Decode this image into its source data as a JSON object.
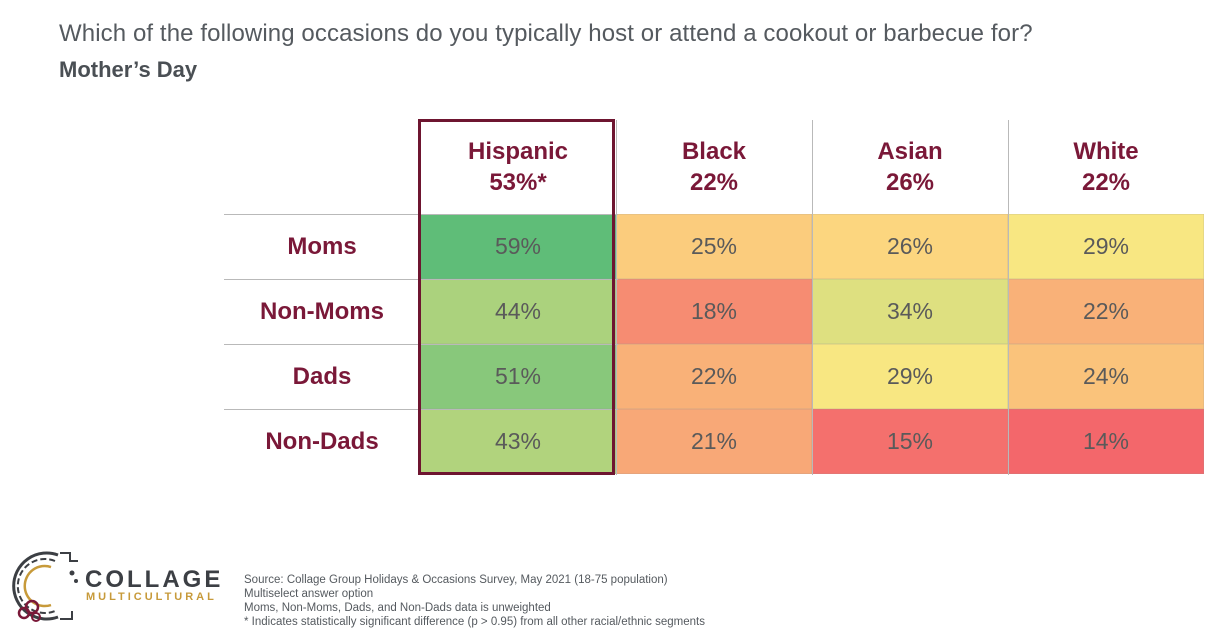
{
  "header": {
    "question": "Which of the following occasions do you typically host or attend a cookout or barbecue for?",
    "subtitle": "Mother’s Day"
  },
  "chart_data": {
    "type": "heatmap",
    "columns": [
      {
        "name": "Hispanic",
        "total": "53%*"
      },
      {
        "name": "Black",
        "total": "22%"
      },
      {
        "name": "Asian",
        "total": "26%"
      },
      {
        "name": "White",
        "total": "22%"
      }
    ],
    "rows": [
      {
        "label": "Moms",
        "values": [
          59,
          25,
          26,
          29
        ]
      },
      {
        "label": "Non-Moms",
        "values": [
          44,
          18,
          34,
          22
        ]
      },
      {
        "label": "Dads",
        "values": [
          51,
          22,
          29,
          24
        ]
      },
      {
        "label": "Non-Dads",
        "values": [
          43,
          21,
          15,
          14
        ]
      }
    ],
    "unit": "%",
    "highlighted_column": "Hispanic",
    "color_scale": {
      "low": "#f3676b",
      "mid": "#fde882",
      "high": "#5fbd78"
    }
  },
  "logo": {
    "word1": "COLLAGE",
    "word2": "MULTICULTURAL",
    "colors": {
      "dark": "#3c3f44",
      "gold": "#c79a3a",
      "brand": "#7a1838"
    }
  },
  "footnotes": [
    "Source: Collage Group Holidays & Occasions Survey, May 2021 (18-75 population)",
    "Multiselect answer option",
    "Moms, Non-Moms, Dads, and Non-Dads data is unweighted",
    "* Indicates statistically significant difference (p > 0.95) from all other racial/ethnic segments"
  ]
}
